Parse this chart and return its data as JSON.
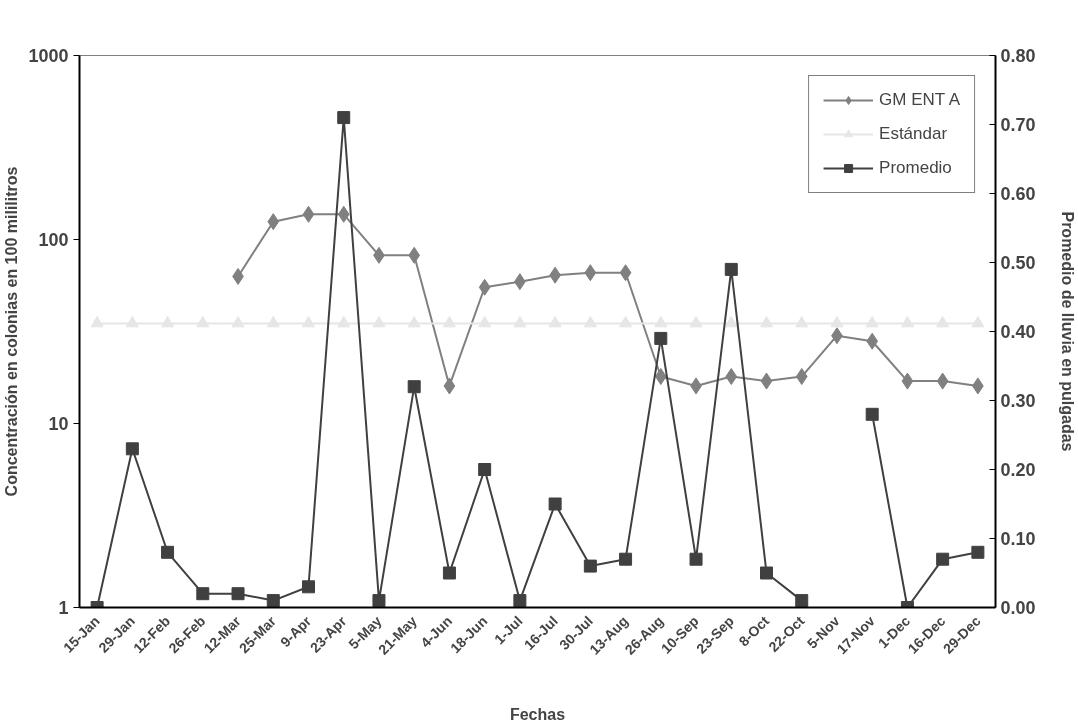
{
  "chart_data": {
    "type": "line",
    "xlabel": "Fechas",
    "ylabel": "Concentración en colonias en 100 mililitros",
    "y2label": "Promedio de lluvia en pulgadas",
    "categories": [
      "15-Jan",
      "29-Jan",
      "12-Feb",
      "26-Feb",
      "12-Mar",
      "25-Mar",
      "9-Apr",
      "23-Apr",
      "5-May",
      "21-May",
      "4-Jun",
      "18-Jun",
      "1-Jul",
      "16-Jul",
      "30-Jul",
      "13-Aug",
      "26-Aug",
      "10-Sep",
      "23-Sep",
      "8-Oct",
      "22-Oct",
      "5-Nov",
      "17-Nov",
      "1-Dec",
      "16-Dec",
      "29-Dec"
    ],
    "series": [
      {
        "name": "GM ENT A",
        "color": "#808080",
        "marker": "diamond",
        "values": [
          null,
          null,
          null,
          null,
          63,
          125,
          137,
          137,
          82,
          82,
          16,
          55,
          59,
          64,
          66,
          66,
          18,
          16,
          18,
          17,
          18,
          30,
          28,
          17,
          17,
          16
        ]
      },
      {
        "name": "Estándar",
        "color": "#e6e6e6",
        "marker": "triangle",
        "values": [
          35,
          35,
          35,
          35,
          35,
          35,
          35,
          35,
          35,
          35,
          35,
          35,
          35,
          35,
          35,
          35,
          35,
          35,
          35,
          35,
          35,
          35,
          35,
          35,
          35,
          35
        ]
      },
      {
        "name": "Promedio",
        "color": "#404040",
        "marker": "square",
        "axis": "y2",
        "values": [
          0,
          0.23,
          0.08,
          0.02,
          0.02,
          0.01,
          0.03,
          0.71,
          0.01,
          0.32,
          0.05,
          0.2,
          0.01,
          0.15,
          0.06,
          0.07,
          0.39,
          0.07,
          0.49,
          0.05,
          0.01,
          null,
          0.28,
          0,
          0.07,
          0.08
        ]
      }
    ],
    "log": "y",
    "ylim": [
      1,
      1000
    ],
    "yticks": [
      1,
      10,
      100,
      1000
    ],
    "y2lim": [
      0,
      0.8
    ],
    "y2ticks": [
      {
        "value": 0,
        "label": "0.00"
      },
      {
        "value": 0.1,
        "label": "0.10"
      },
      {
        "value": 0.2,
        "label": "0.20"
      },
      {
        "value": 0.3,
        "label": "0.30"
      },
      {
        "value": 0.4,
        "label": "0.40"
      },
      {
        "value": 0.5,
        "label": "0.50"
      },
      {
        "value": 0.6,
        "label": "0.60"
      },
      {
        "value": 0.7,
        "label": "0.70"
      },
      {
        "value": 0.8,
        "label": "0.80"
      }
    ],
    "grid": false,
    "legend": "top right"
  }
}
